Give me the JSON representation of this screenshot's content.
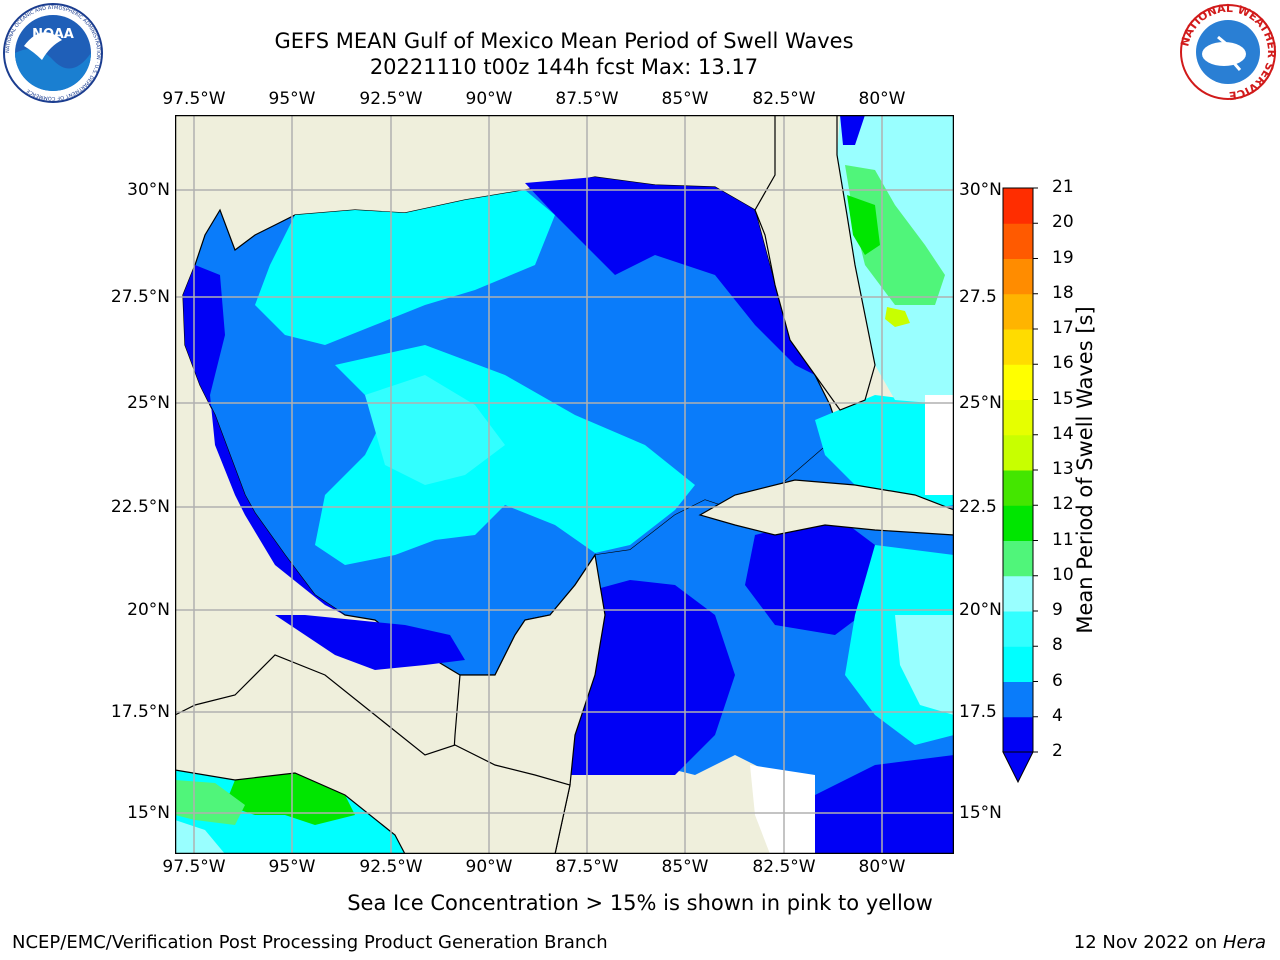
{
  "header": {
    "title_line1": "GEFS MEAN Gulf of Mexico Mean Period of Swell Waves",
    "title_line2": "20221110 t00z 144h fcst   Max: 13.17",
    "noaa_logo_text": "NOAA",
    "noaa_ring_text": "NATIONAL OCEANIC AND ATMOSPHERIC ADMINISTRATION · U.S. DEPARTMENT OF COMMERCE",
    "nws_ring_text": "NATIONAL WEATHER SERVICE"
  },
  "map": {
    "lon_labels": [
      "97.5°W",
      "95°W",
      "92.5°W",
      "90°W",
      "87.5°W",
      "85°W",
      "82.5°W",
      "80°W"
    ],
    "lat_labels_left": [
      "30°N",
      "27.5°N",
      "25°N",
      "22.5°N",
      "20°N",
      "17.5°N",
      "15°N"
    ],
    "lat_labels_right": [
      "30°N",
      "27.5",
      "25°N",
      "22.5",
      "20°N",
      "17.5",
      "15°N"
    ],
    "colors": {
      "land": "#efefdc",
      "grid": "#b0b0b0"
    }
  },
  "colorbar": {
    "title": "Mean Period of Swell Waves [s]",
    "levels": [
      "2",
      "4",
      "6",
      "8",
      "9",
      "10",
      "11",
      "12",
      "13",
      "14",
      "15",
      "16",
      "17",
      "18",
      "19",
      "20",
      "21"
    ],
    "colors": [
      "#0000f5",
      "#0a7cfa",
      "#00ffff",
      "#32ffff",
      "#99ffff",
      "#50f57a",
      "#00e600",
      "#44e600",
      "#c8ff00",
      "#e6ff00",
      "#ffff00",
      "#ffdc00",
      "#ffb400",
      "#ff8c00",
      "#ff5a00",
      "#ff2d00"
    ]
  },
  "footer": {
    "note": "Sea Ice Concentration > 15% is shown in pink to yellow",
    "org": "NCEP/EMC/Verification Post Processing Product Generation Branch",
    "date": "12 Nov 2022 on ",
    "machine": "Hera"
  }
}
